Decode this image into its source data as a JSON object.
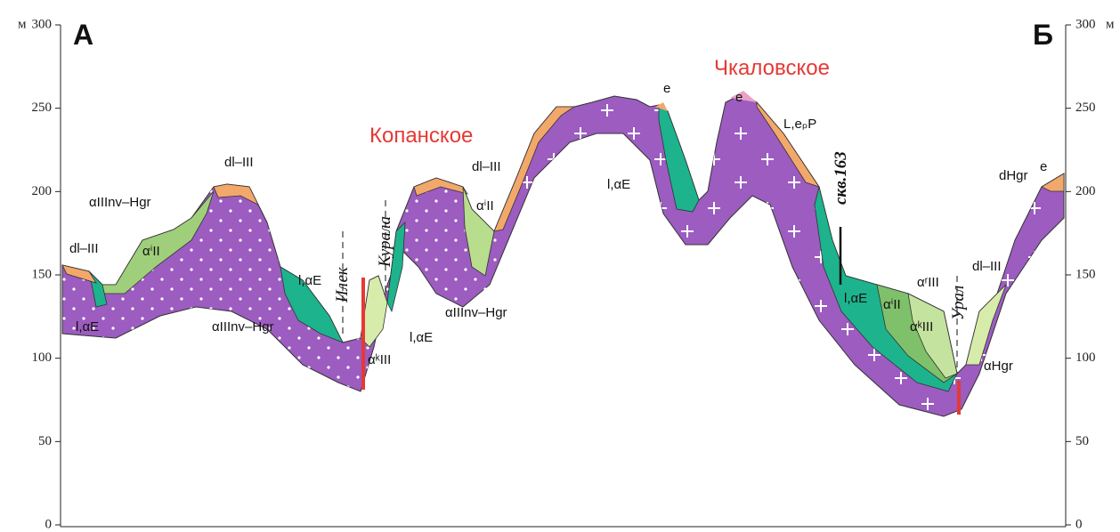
{
  "left_axis": {
    "unit": "м",
    "ticks": [
      0,
      50,
      100,
      150,
      200,
      250,
      300
    ]
  },
  "right_axis": {
    "unit": "м",
    "ticks": [
      0,
      50,
      100,
      150,
      200,
      250,
      300
    ]
  },
  "profile_ends": {
    "start": "А",
    "end": "Б"
  },
  "deposits": [
    {
      "name": "Копанское"
    },
    {
      "name": "Чкаловское"
    }
  ],
  "rivers": [
    "Илек",
    "Курала",
    "Урал"
  ],
  "well": "скв.163",
  "layer_labels": [
    "dl–III",
    "αIIInv–Hgr",
    "αⁱII",
    "dl–III",
    "l,αE",
    "l,αE",
    "αIIInv–Hgr",
    "αᵏIII",
    "l,αE",
    "dl–III",
    "αⁱII",
    "αIIInv–Hgr",
    "e",
    "l,αE",
    "e",
    "L,eₚP",
    "l,αE",
    "αⁱII",
    "αʳIII",
    "αᵏIII",
    "dl–III",
    "αHgr",
    "dHgr",
    "e"
  ]
}
